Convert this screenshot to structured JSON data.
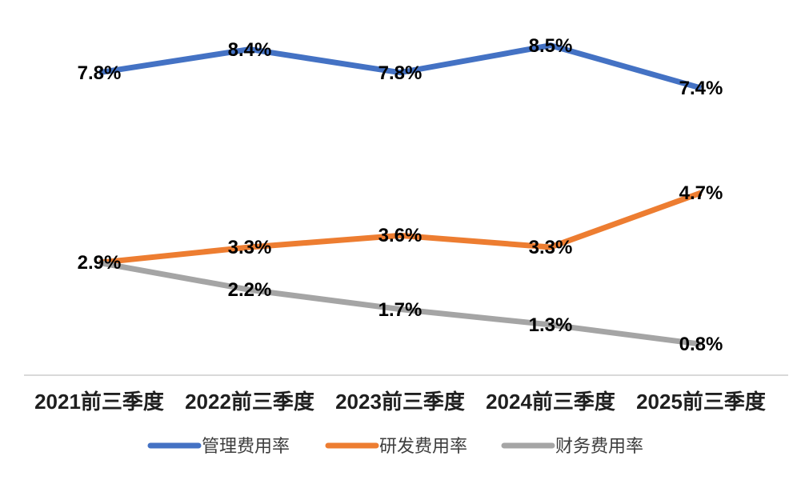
{
  "chart_data": {
    "type": "line",
    "categories": [
      "2021前三季度",
      "2022前三季度",
      "2023前三季度",
      "2024前三季度",
      "2025前三季度"
    ],
    "series": [
      {
        "name": "管理费用率",
        "color": "#4472C4",
        "values": [
          7.8,
          8.4,
          7.8,
          8.5,
          7.4
        ],
        "labels": [
          "7.8%",
          "8.4%",
          "7.8%",
          "8.5%",
          "7.4%"
        ]
      },
      {
        "name": "研发费用率",
        "color": "#ED7D31",
        "values": [
          2.9,
          3.3,
          3.6,
          3.3,
          4.7
        ],
        "labels": [
          "2.9%",
          "3.3%",
          "3.6%",
          "3.3%",
          "4.7%"
        ]
      },
      {
        "name": "财务费用率",
        "color": "#A5A5A5",
        "values": [
          2.9,
          2.2,
          1.7,
          1.3,
          0.8
        ],
        "labels": [
          "2.9%",
          "2.2%",
          "1.7%",
          "1.3%",
          "0.8%"
        ]
      }
    ],
    "title": "",
    "xlabel": "",
    "ylabel": "",
    "ylim": [
      0,
      9
    ],
    "grid": false,
    "y_axis_labels_visible": false,
    "data_labels_visible": true,
    "legend_position": "bottom",
    "axis_line_color": "#D9D9D9",
    "data_label_color": "#000000",
    "category_label_color": "#1f1f1f",
    "legend_text_color": "#3d3d3d",
    "background_color": "#FFFFFF"
  }
}
